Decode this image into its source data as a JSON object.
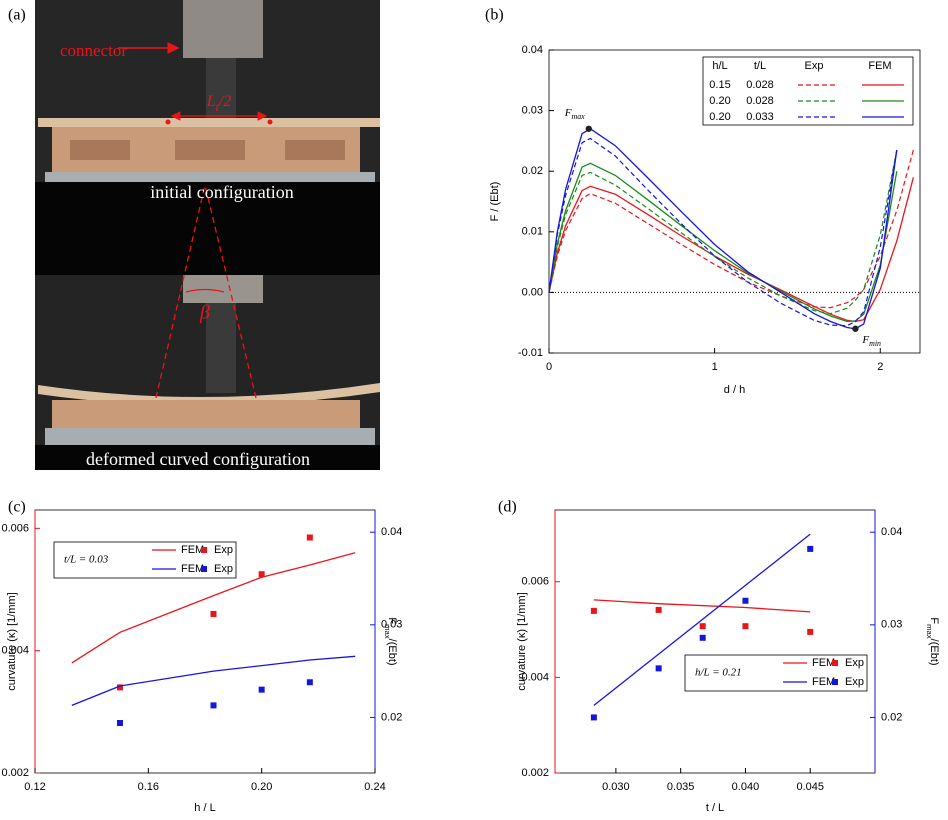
{
  "photo": {
    "panel": "(a)",
    "connector": "connector",
    "length": {
      "main": "L",
      "sub": "t",
      "rest": "/2"
    },
    "angle": "β",
    "top_caption": "initial configuration",
    "bottom_caption": "deformed curved configuration"
  },
  "chart_data": [
    {
      "type": "line",
      "panel": "(b)",
      "xlabel": "d / h",
      "ylabel": "F / (Ebt)",
      "xlim": [
        0,
        2.24
      ],
      "ylim": [
        -0.01,
        0.04
      ],
      "xticks": [
        0,
        1,
        2
      ],
      "yticks": [
        -0.01,
        {
          "value": 0,
          "label": "0.00"
        },
        0.01,
        0.02,
        0.03,
        0.04
      ],
      "zero_line": true,
      "columns": [
        "h/L",
        "t/L",
        "Exp",
        "FEM"
      ],
      "x": [
        0,
        0.05,
        0.1,
        0.2,
        0.25,
        0.4,
        0.6,
        0.8,
        1.0,
        1.2,
        1.4,
        1.6,
        1.7,
        1.8,
        1.85,
        1.9,
        2.0,
        2.1,
        2.2
      ],
      "series": [
        {
          "h_L": "0.15",
          "t_L": "0.028",
          "color": "#e8151b",
          "exp": [
            0,
            0.006,
            0.0102,
            0.0155,
            0.0163,
            0.0147,
            0.0113,
            0.0079,
            0.0046,
            0.0017,
            -0.0006,
            -0.0024,
            -0.0025,
            -0.0017,
            -0.0008,
            0.0005,
            0.006,
            0.0135,
            0.0235
          ],
          "fem": [
            0,
            0.0065,
            0.011,
            0.0168,
            0.0175,
            0.0162,
            0.0128,
            0.0093,
            0.006,
            0.003,
            0.0004,
            -0.0023,
            -0.0036,
            -0.0046,
            -0.0048,
            -0.0045,
            0.0005,
            0.0085,
            0.019
          ]
        },
        {
          "h_L": "0.20",
          "t_L": "0.028",
          "color": "#1a8a1a",
          "exp": [
            0,
            0.0075,
            0.0128,
            0.0193,
            0.0198,
            0.0177,
            0.0138,
            0.0098,
            0.0059,
            0.0024,
            -0.0006,
            -0.003,
            -0.0035,
            -0.0026,
            -0.0013,
            0.0005,
            0.0095,
            0.0235,
            null
          ],
          "fem": [
            0,
            0.008,
            0.0135,
            0.0207,
            0.0213,
            0.0193,
            0.0152,
            0.011,
            0.0069,
            0.0032,
            0.0002,
            -0.0027,
            -0.0039,
            -0.0048,
            -0.0047,
            -0.0036,
            0.0045,
            0.02,
            null
          ]
        },
        {
          "h_L": "0.20",
          "t_L": "0.033",
          "color": "#1515e0",
          "exp": [
            0,
            0.0095,
            0.016,
            0.0247,
            0.0254,
            0.0225,
            0.0168,
            0.0113,
            0.006,
            0.0017,
            -0.0018,
            -0.0046,
            -0.0054,
            -0.0055,
            -0.0048,
            -0.0032,
            0.0075,
            0.0235,
            null
          ],
          "fem": [
            0,
            0.01,
            0.017,
            0.0262,
            0.027,
            0.0242,
            0.0188,
            0.0133,
            0.0079,
            0.0034,
            0,
            -0.0035,
            -0.0048,
            -0.0058,
            -0.006,
            -0.0052,
            0.004,
            0.0235,
            null
          ]
        }
      ],
      "annotations": [
        {
          "label": "F",
          "sub": "max",
          "x": 0.24,
          "y": 0.027
        },
        {
          "label": "F",
          "sub": "min",
          "x": 1.85,
          "y": -0.006
        }
      ]
    },
    {
      "type": "combo",
      "panel": "(c)",
      "xlabel": "h / L",
      "ylabel": "curvature (κ) [1/mm]",
      "y2label": {
        "main": "F",
        "sub": "max",
        "rest": "/(Ebt)"
      },
      "xlim": [
        0.12,
        0.24
      ],
      "xticks": [
        0.12,
        0.16,
        {
          "value": 0.2,
          "label": "0.20"
        },
        0.24
      ],
      "ylim": [
        0.002,
        0.0063
      ],
      "yticks": [
        0.002,
        0.004,
        0.006
      ],
      "y2lim": [
        0.014,
        0.0424
      ],
      "y2ticks": [
        0.02,
        0.03,
        0.04
      ],
      "ycolor": "#e8151b",
      "y2color": "#1515e0",
      "legend_title": "t/L = 0.03",
      "series": [
        {
          "name": "FEM",
          "kind": "line",
          "color": "#e8151b",
          "axis": "y",
          "x": [
            0.133,
            0.15,
            0.183,
            0.2,
            0.217,
            0.233
          ],
          "values": [
            0.0038,
            0.0043,
            0.0049,
            0.0052,
            0.0054,
            0.0056
          ]
        },
        {
          "name": "Exp",
          "kind": "scatter",
          "color": "#e8151b",
          "axis": "y",
          "x": [
            0.15,
            0.183,
            0.2,
            0.217
          ],
          "values": [
            0.0034,
            0.0046,
            0.00525,
            0.00585
          ]
        },
        {
          "name": "FEM",
          "kind": "line",
          "color": "#1515e0",
          "axis": "y2",
          "x": [
            0.133,
            0.15,
            0.183,
            0.2,
            0.217,
            0.233
          ],
          "values": [
            0.0213,
            0.0234,
            0.025,
            0.0256,
            0.0262,
            0.0266
          ]
        },
        {
          "name": "Exp",
          "kind": "scatter",
          "color": "#1515e0",
          "axis": "y2",
          "x": [
            0.15,
            0.183,
            0.2,
            0.217
          ],
          "values": [
            0.0194,
            0.0213,
            0.023,
            0.0238
          ]
        }
      ]
    },
    {
      "type": "combo",
      "panel": "(d)",
      "xlabel": "t / L",
      "ylabel": "curvature (κ) [1/mm]",
      "y2label": {
        "main": "F",
        "sub": "max",
        "rest": "/(Ebt)"
      },
      "xlim": [
        0.0253,
        0.05
      ],
      "xticks": [
        {
          "value": 0.03,
          "label": "0.030"
        },
        0.035,
        {
          "value": 0.04,
          "label": "0.040"
        },
        0.045
      ],
      "ylim": [
        0.002,
        0.0075
      ],
      "yticks": [
        0.002,
        0.004,
        0.006
      ],
      "y2lim": [
        0.014,
        0.0424
      ],
      "y2ticks": [
        0.02,
        0.03,
        0.04
      ],
      "ycolor": "#e8151b",
      "y2color": "#1515e0",
      "legend_title": "h/L = 0.21",
      "series": [
        {
          "name": "FEM",
          "kind": "line",
          "color": "#e8151b",
          "axis": "y",
          "x": [
            0.0283,
            0.0333,
            0.04,
            0.045
          ],
          "values": [
            0.00562,
            0.00554,
            0.00546,
            0.00537
          ]
        },
        {
          "name": "Exp",
          "kind": "scatter",
          "color": "#e8151b",
          "axis": "y",
          "x": [
            0.0283,
            0.0333,
            0.0367,
            0.04,
            0.045
          ],
          "values": [
            0.00539,
            0.00541,
            0.00507,
            0.00507,
            0.00495
          ]
        },
        {
          "name": "FEM",
          "kind": "line",
          "color": "#1515e0",
          "axis": "y2",
          "x": [
            0.0283,
            0.045
          ],
          "values": [
            0.0213,
            0.0398
          ]
        },
        {
          "name": "Exp",
          "kind": "scatter",
          "color": "#1515e0",
          "axis": "y2",
          "x": [
            0.0283,
            0.0333,
            0.0367,
            0.04,
            0.045
          ],
          "values": [
            0.02,
            0.0253,
            0.0286,
            0.0326,
            0.0382
          ]
        }
      ]
    }
  ]
}
